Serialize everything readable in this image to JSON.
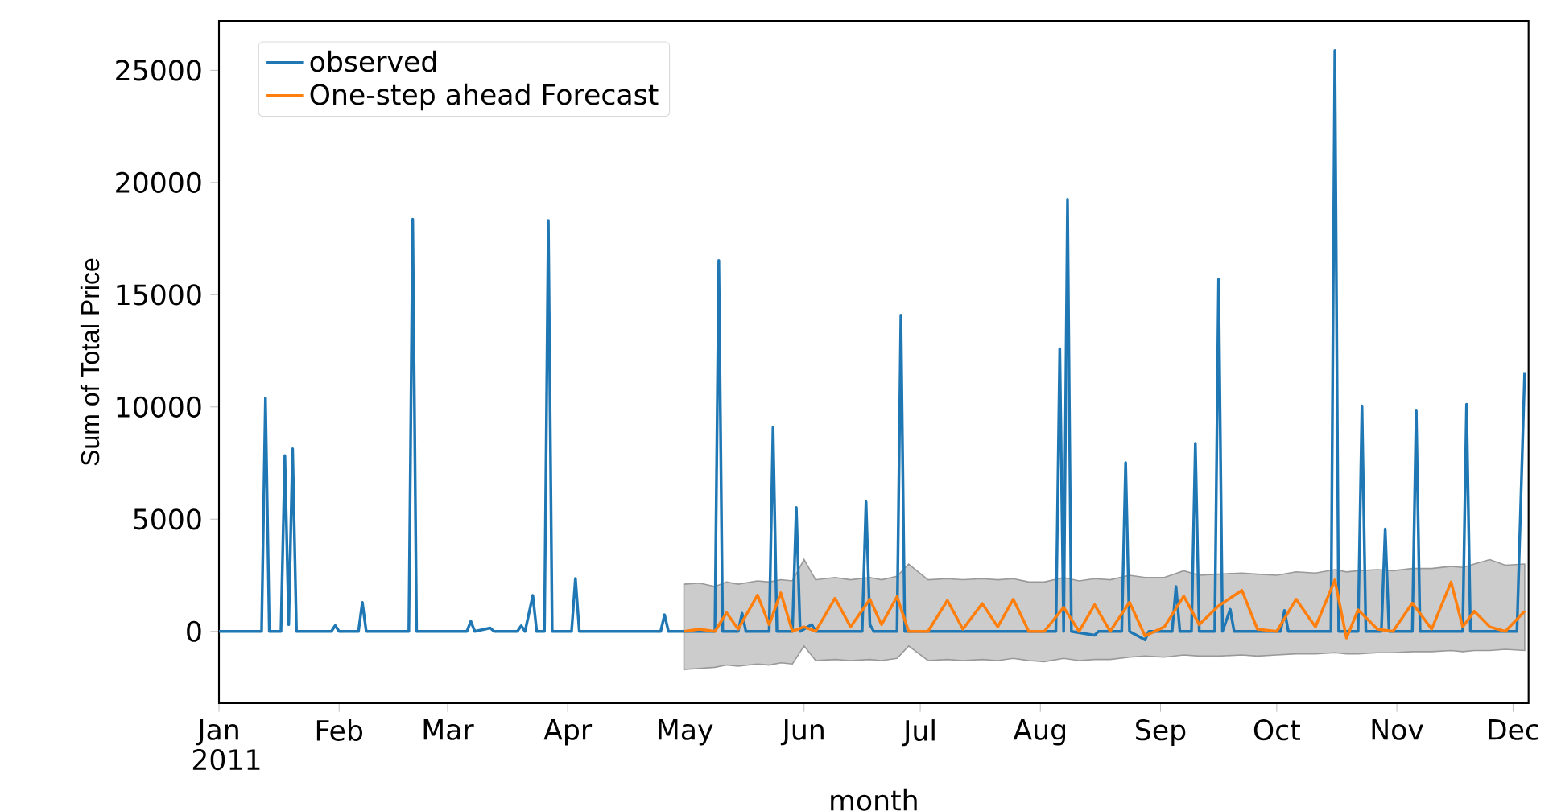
{
  "chart_data": {
    "type": "line",
    "xlabel": "month",
    "ylabel": "Sum of Total Price",
    "xlim": [
      "2011-01-01",
      "2011-12-05"
    ],
    "ylim": [
      -3200,
      27200
    ],
    "xticks": [
      {
        "value": "2011-01-01",
        "label": "Jan 2011"
      },
      {
        "value": "2011-02-01",
        "label": "Feb"
      },
      {
        "value": "2011-03-01",
        "label": "Mar"
      },
      {
        "value": "2011-04-01",
        "label": "Apr"
      },
      {
        "value": "2011-05-01",
        "label": "May"
      },
      {
        "value": "2011-06-01",
        "label": "Jun"
      },
      {
        "value": "2011-07-01",
        "label": "Jul"
      },
      {
        "value": "2011-08-01",
        "label": "Aug"
      },
      {
        "value": "2011-09-01",
        "label": "Sep"
      },
      {
        "value": "2011-10-01",
        "label": "Oct"
      },
      {
        "value": "2011-11-01",
        "label": "Nov"
      },
      {
        "value": "2011-12-01",
        "label": "Dec"
      }
    ],
    "yticks": [
      0,
      5000,
      10000,
      15000,
      20000,
      25000
    ],
    "legend": "top left",
    "grid": false,
    "marker": "none",
    "line_style": "solid",
    "series": [
      {
        "name": "observed",
        "color": "#1f77b4",
        "x": [
          "2011-01-01",
          "2011-01-12",
          "2011-01-13",
          "2011-01-14",
          "2011-01-17",
          "2011-01-18",
          "2011-01-19",
          "2011-01-20",
          "2011-01-21",
          "2011-01-30",
          "2011-01-31",
          "2011-02-01",
          "2011-02-06",
          "2011-02-07",
          "2011-02-08",
          "2011-02-19",
          "2011-02-20",
          "2011-02-21",
          "2011-03-06",
          "2011-03-07",
          "2011-03-08",
          "2011-03-12",
          "2011-03-13",
          "2011-03-19",
          "2011-03-20",
          "2011-03-21",
          "2011-03-23",
          "2011-03-24",
          "2011-03-26",
          "2011-03-27",
          "2011-03-28",
          "2011-04-02",
          "2011-04-03",
          "2011-04-04",
          "2011-04-25",
          "2011-04-26",
          "2011-04-27",
          "2011-05-09",
          "2011-05-10",
          "2011-05-11",
          "2011-05-15",
          "2011-05-16",
          "2011-05-17",
          "2011-05-23",
          "2011-05-24",
          "2011-05-25",
          "2011-05-29",
          "2011-05-30",
          "2011-05-31",
          "2011-06-03",
          "2011-06-04",
          "2011-06-16",
          "2011-06-17",
          "2011-06-18",
          "2011-06-19",
          "2011-06-25",
          "2011-06-26",
          "2011-06-27",
          "2011-08-05",
          "2011-08-06",
          "2011-08-07",
          "2011-08-08",
          "2011-08-09",
          "2011-08-15",
          "2011-08-16",
          "2011-08-22",
          "2011-08-23",
          "2011-08-24",
          "2011-08-28",
          "2011-08-29",
          "2011-09-04",
          "2011-09-05",
          "2011-09-06",
          "2011-09-09",
          "2011-09-10",
          "2011-09-11",
          "2011-09-15",
          "2011-09-16",
          "2011-09-17",
          "2011-09-19",
          "2011-09-20",
          "2011-10-02",
          "2011-10-03",
          "2011-10-04",
          "2011-10-15",
          "2011-10-16",
          "2011-10-17",
          "2011-10-22",
          "2011-10-23",
          "2011-10-24",
          "2011-10-28",
          "2011-10-29",
          "2011-10-30",
          "2011-11-05",
          "2011-11-06",
          "2011-11-07",
          "2011-11-18",
          "2011-11-19",
          "2011-11-20",
          "2011-12-02",
          "2011-12-04"
        ],
        "values": [
          0,
          0,
          10400,
          0,
          0,
          7830,
          300,
          8140,
          0,
          0,
          260,
          0,
          0,
          1290,
          0,
          0,
          18360,
          0,
          0,
          450,
          0,
          150,
          0,
          0,
          250,
          0,
          1600,
          0,
          0,
          18310,
          0,
          0,
          2360,
          0,
          0,
          740,
          0,
          0,
          16530,
          0,
          0,
          810,
          0,
          0,
          9100,
          0,
          0,
          5520,
          0,
          300,
          0,
          0,
          5780,
          300,
          0,
          0,
          14090,
          0,
          0,
          12590,
          0,
          19250,
          0,
          -170,
          0,
          0,
          7520,
          0,
          -380,
          0,
          0,
          2000,
          0,
          0,
          8380,
          0,
          0,
          15690,
          0,
          980,
          0,
          0,
          930,
          0,
          0,
          25880,
          0,
          0,
          10050,
          0,
          0,
          4560,
          0,
          0,
          9860,
          0,
          0,
          10120,
          0,
          0,
          11550
        ]
      },
      {
        "name": "One-step ahead Forecast",
        "color": "#ff7f0e",
        "x": [
          "2011-05-01",
          "2011-05-05",
          "2011-05-09",
          "2011-05-12",
          "2011-05-15",
          "2011-05-20",
          "2011-05-23",
          "2011-05-26",
          "2011-05-29",
          "2011-06-01",
          "2011-06-04",
          "2011-06-09",
          "2011-06-13",
          "2011-06-18",
          "2011-06-21",
          "2011-06-25",
          "2011-06-28",
          "2011-07-03",
          "2011-07-08",
          "2011-07-12",
          "2011-07-17",
          "2011-07-21",
          "2011-07-25",
          "2011-07-29",
          "2011-08-02",
          "2011-08-07",
          "2011-08-11",
          "2011-08-15",
          "2011-08-19",
          "2011-08-24",
          "2011-08-28",
          "2011-09-02",
          "2011-09-07",
          "2011-09-11",
          "2011-09-16",
          "2011-09-22",
          "2011-09-26",
          "2011-10-01",
          "2011-10-06",
          "2011-10-11",
          "2011-10-16",
          "2011-10-19",
          "2011-10-22",
          "2011-10-27",
          "2011-10-31",
          "2011-11-05",
          "2011-11-10",
          "2011-11-15",
          "2011-11-18",
          "2011-11-21",
          "2011-11-25",
          "2011-11-29",
          "2011-12-04"
        ],
        "values": [
          0,
          100,
          0,
          830,
          100,
          1620,
          300,
          1720,
          0,
          200,
          0,
          1480,
          200,
          1430,
          300,
          1550,
          0,
          0,
          1380,
          100,
          1240,
          200,
          1430,
          0,
          0,
          1070,
          0,
          1190,
          0,
          1300,
          -200,
          200,
          1570,
          300,
          1140,
          1830,
          100,
          0,
          1430,
          200,
          2290,
          -300,
          960,
          100,
          0,
          1260,
          100,
          2200,
          200,
          900,
          200,
          0,
          900
        ],
        "lower": [
          -1700,
          -1650,
          -1600,
          -1500,
          -1550,
          -1450,
          -1500,
          -1400,
          -1450,
          -650,
          -1300,
          -1250,
          -1300,
          -1250,
          -1300,
          -1200,
          -650,
          -1300,
          -1250,
          -1300,
          -1250,
          -1300,
          -1200,
          -1300,
          -1350,
          -1200,
          -1300,
          -1250,
          -1250,
          -1150,
          -1100,
          -1150,
          -1050,
          -1100,
          -1100,
          -1050,
          -1100,
          -1050,
          -1000,
          -1000,
          -950,
          -1000,
          -1000,
          -950,
          -950,
          -900,
          -900,
          -850,
          -900,
          -850,
          -850,
          -800,
          -850
        ],
        "upper": [
          2100,
          2150,
          2000,
          2200,
          2100,
          2250,
          2200,
          2300,
          2250,
          3200,
          2300,
          2400,
          2300,
          2400,
          2300,
          2450,
          3000,
          2300,
          2350,
          2300,
          2350,
          2300,
          2350,
          2200,
          2200,
          2400,
          2250,
          2350,
          2300,
          2500,
          2400,
          2400,
          2700,
          2500,
          2550,
          2600,
          2550,
          2500,
          2650,
          2600,
          2750,
          2650,
          2700,
          2750,
          2700,
          2800,
          2800,
          2900,
          2850,
          3000,
          3200,
          2950,
          3000
        ]
      }
    ]
  }
}
